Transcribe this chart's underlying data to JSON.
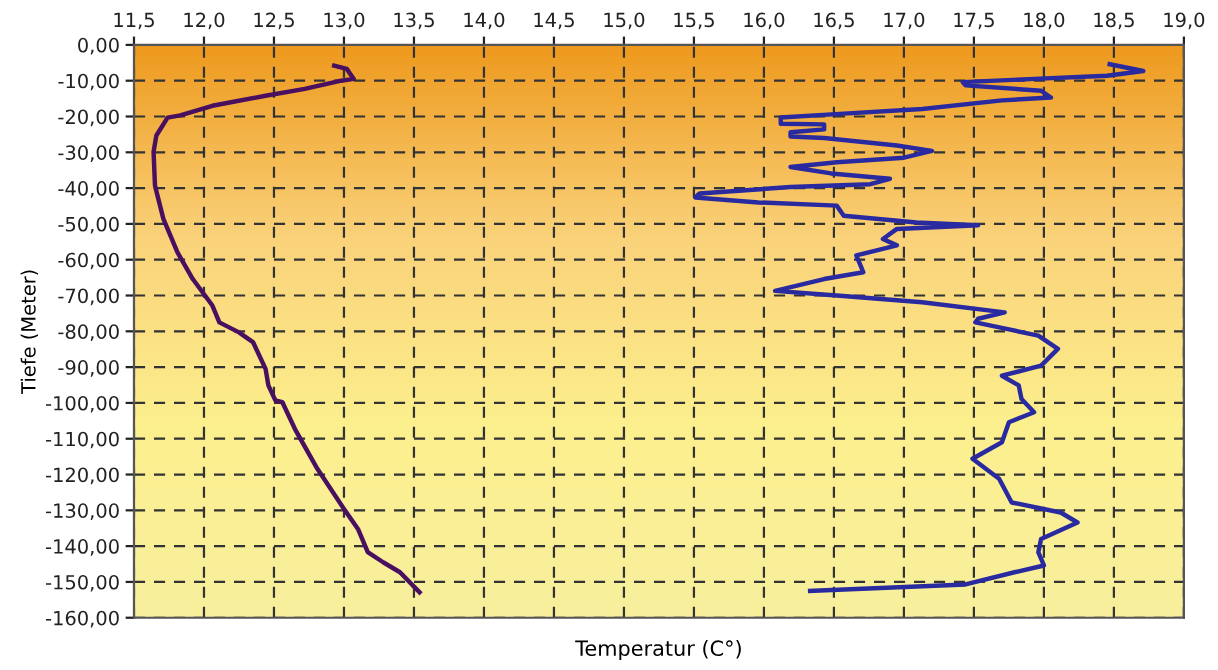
{
  "chart_data": {
    "type": "line",
    "xlabel": "Temperatur (C°)",
    "ylabel": "Tiefe (Meter)",
    "xlim": [
      11.5,
      19.0
    ],
    "ylim": [
      -160,
      0
    ],
    "xticks": [
      {
        "value": 11.5,
        "label": "11,5"
      },
      {
        "value": 12.0,
        "label": "12,0"
      },
      {
        "value": 12.5,
        "label": "12,5"
      },
      {
        "value": 13.0,
        "label": "13,0"
      },
      {
        "value": 13.5,
        "label": "13,5"
      },
      {
        "value": 14.0,
        "label": "14,0"
      },
      {
        "value": 14.5,
        "label": "14,5"
      },
      {
        "value": 15.0,
        "label": "15,0"
      },
      {
        "value": 15.5,
        "label": "15,5"
      },
      {
        "value": 16.0,
        "label": "16,0"
      },
      {
        "value": 16.5,
        "label": "16,5"
      },
      {
        "value": 17.0,
        "label": "17,0"
      },
      {
        "value": 17.5,
        "label": "17,5"
      },
      {
        "value": 18.0,
        "label": "18,0"
      },
      {
        "value": 18.5,
        "label": "18,5"
      },
      {
        "value": 19.0,
        "label": "19,0"
      }
    ],
    "yticks": [
      {
        "value": 0,
        "label": "0,00"
      },
      {
        "value": -10,
        "label": "-10,00"
      },
      {
        "value": -20,
        "label": "-20,00"
      },
      {
        "value": -30,
        "label": "-30,00"
      },
      {
        "value": -40,
        "label": "-40,00"
      },
      {
        "value": -50,
        "label": "-50,00"
      },
      {
        "value": -60,
        "label": "-60,00"
      },
      {
        "value": -70,
        "label": "-70,00"
      },
      {
        "value": -80,
        "label": "-80,00"
      },
      {
        "value": -90,
        "label": "-90,00"
      },
      {
        "value": -100,
        "label": "-100,00"
      },
      {
        "value": -110,
        "label": "-110,00"
      },
      {
        "value": -120,
        "label": "-120,00"
      },
      {
        "value": -130,
        "label": "-130,00"
      },
      {
        "value": -140,
        "label": "-140,00"
      },
      {
        "value": -150,
        "label": "-150,00"
      },
      {
        "value": -160,
        "label": "-160,00"
      }
    ],
    "grid": true,
    "marker": "none",
    "line_style": "solid",
    "legend": false,
    "series": [
      {
        "color": "#4a1060",
        "x": [
          12.93,
          13.02,
          13.07,
          12.98,
          12.72,
          12.44,
          12.06,
          11.83,
          11.74,
          11.66,
          11.64,
          11.65,
          11.71,
          11.81,
          11.92,
          12.06,
          12.11,
          12.25,
          12.35,
          12.44,
          12.46,
          12.51,
          12.56,
          12.65,
          12.81,
          13.0,
          13.1,
          13.17,
          13.28,
          13.4,
          13.54
        ],
        "values": [
          -5.8,
          -6.7,
          -9.5,
          -10,
          -12.3,
          -14.2,
          -17,
          -19.7,
          -20.3,
          -25.3,
          -29.9,
          -39.3,
          -48.6,
          -57.9,
          -65.4,
          -72.8,
          -77.5,
          -80.3,
          -83,
          -90.5,
          -95.1,
          -99.3,
          -99.8,
          -107.3,
          -118.4,
          -129.6,
          -135.2,
          -141.7,
          -144.5,
          -147.3,
          -152.9
        ]
      },
      {
        "color": "#2a2aa0",
        "x": [
          18.47,
          18.71,
          18.45,
          17.93,
          17.42,
          17.44,
          17.98,
          18.05,
          17.7,
          17.13,
          16.57,
          16.12,
          16.12,
          16.43,
          16.43,
          16.19,
          16.19,
          16.43,
          16.95,
          17.2,
          17.0,
          16.52,
          16.19,
          16.48,
          16.9,
          16.76,
          16.19,
          15.54,
          15.51,
          15.96,
          16.52,
          16.57,
          17.09,
          17.53,
          16.95,
          16.85,
          16.95,
          16.66,
          16.71,
          16.43,
          16.08,
          16.52,
          17.13,
          17.72,
          17.53,
          17.51,
          17.96,
          18.1,
          17.98,
          17.7,
          17.82,
          17.84,
          17.93,
          17.75,
          17.7,
          17.49,
          17.68,
          17.77,
          18.12,
          18.24,
          17.98,
          17.96,
          18.0,
          17.79,
          17.44,
          16.33
        ],
        "values": [
          -5.4,
          -7.3,
          -8.6,
          -9.5,
          -10.4,
          -11.3,
          -12.8,
          -14.7,
          -15.5,
          -17.9,
          -19.2,
          -20.3,
          -22,
          -22.2,
          -23.6,
          -24.4,
          -25.6,
          -26,
          -28.1,
          -29.6,
          -31.5,
          -32.8,
          -34.1,
          -35.9,
          -37.4,
          -38.9,
          -39.7,
          -41.5,
          -42.6,
          -44,
          -44.9,
          -47.7,
          -49.6,
          -50.4,
          -51.4,
          -54.2,
          -56,
          -58.8,
          -63.5,
          -65.4,
          -68.7,
          -70,
          -71.9,
          -74.7,
          -76.5,
          -77.5,
          -81.2,
          -84.9,
          -89.6,
          -92.4,
          -95.1,
          -98.9,
          -102.6,
          -105.4,
          -111,
          -115.6,
          -121.2,
          -127.8,
          -130.6,
          -133.4,
          -138,
          -141.7,
          -145.4,
          -147.3,
          -150.7,
          -152.5
        ]
      }
    ]
  }
}
